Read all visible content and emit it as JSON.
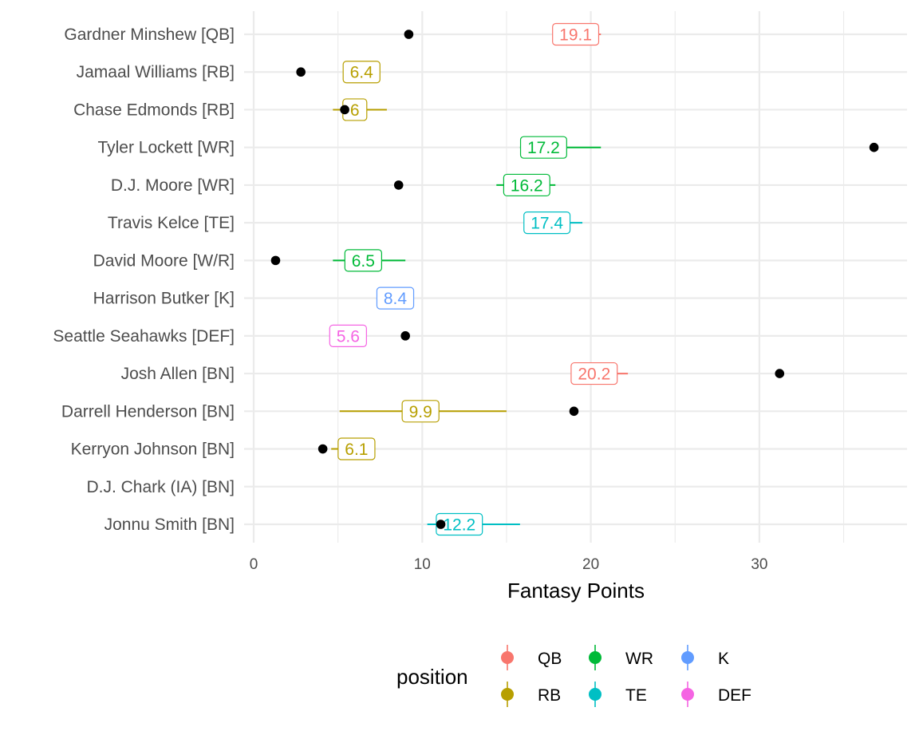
{
  "chart_data": {
    "type": "scatter",
    "title": "",
    "xlabel": "Fantasy Points",
    "ylabel": "",
    "xlim": [
      0,
      38.5
    ],
    "x_ticks": [
      0,
      10,
      20,
      30
    ],
    "x_tick_labels": [
      "0",
      "10",
      "20",
      "30"
    ],
    "grid": true,
    "legend_position": "bottom",
    "legend_title": "position",
    "legend": [
      {
        "name": "QB",
        "color": "#F8766D"
      },
      {
        "name": "RB",
        "color": "#B79F00"
      },
      {
        "name": "WR",
        "color": "#00BA38"
      },
      {
        "name": "TE",
        "color": "#00BFC4"
      },
      {
        "name": "K",
        "color": "#619CFF"
      },
      {
        "name": "DEF",
        "color": "#F564E3"
      }
    ],
    "players": [
      {
        "name": "Gardner Minshew [QB]",
        "position": "QB",
        "projection": 19.1,
        "label": "19.1",
        "range": [
          18.9,
          20.6
        ],
        "actual": 9.2
      },
      {
        "name": "Jamaal Williams [RB]",
        "position": "RB",
        "projection": 6.4,
        "label": "6.4",
        "range": null,
        "actual": 2.8
      },
      {
        "name": "Chase Edmonds [RB]",
        "position": "RB",
        "projection": 6.0,
        "label": "6",
        "range": [
          4.7,
          7.9
        ],
        "actual": 5.4
      },
      {
        "name": "Tyler Lockett [WR]",
        "position": "WR",
        "projection": 17.2,
        "label": "17.2",
        "range": [
          15.8,
          20.6
        ],
        "actual": 36.8
      },
      {
        "name": "D.J. Moore [WR]",
        "position": "WR",
        "projection": 16.2,
        "label": "16.2",
        "range": [
          14.4,
          17.9
        ],
        "actual": 8.6
      },
      {
        "name": "Travis Kelce [TE]",
        "position": "TE",
        "projection": 17.4,
        "label": "17.4",
        "range": [
          16.5,
          19.5
        ],
        "actual": null
      },
      {
        "name": "David Moore [W/R]",
        "position": "WR",
        "projection": 6.5,
        "label": "6.5",
        "range": [
          4.7,
          9.0
        ],
        "actual": 1.3
      },
      {
        "name": "Harrison Butker [K]",
        "position": "K",
        "projection": 8.4,
        "label": "8.4",
        "range": null,
        "actual": null
      },
      {
        "name": "Seattle Seahawks [DEF]",
        "position": "DEF",
        "projection": 5.6,
        "label": "5.6",
        "range": null,
        "actual": 9.0
      },
      {
        "name": "Josh Allen [BN]",
        "position": "QB",
        "projection": 20.2,
        "label": "20.2",
        "range": [
          19.5,
          22.2
        ],
        "actual": 31.2
      },
      {
        "name": "Darrell Henderson [BN]",
        "position": "RB",
        "projection": 9.9,
        "label": "9.9",
        "range": [
          5.1,
          15.0
        ],
        "actual": 19.0
      },
      {
        "name": "Kerryon Johnson [BN]",
        "position": "RB",
        "projection": 6.1,
        "label": "6.1",
        "range": [
          4.6,
          6.6
        ],
        "actual": 4.1
      },
      {
        "name": "D.J. Chark (IA) [BN]",
        "position": null,
        "projection": null,
        "label": "",
        "range": null,
        "actual": null
      },
      {
        "name": "Jonnu Smith [BN]",
        "position": "TE",
        "projection": 12.2,
        "label": "12.2",
        "range": [
          10.3,
          15.8
        ],
        "actual": 11.1
      }
    ]
  }
}
